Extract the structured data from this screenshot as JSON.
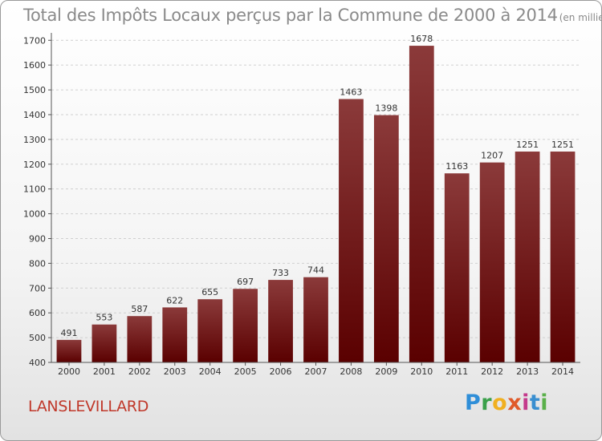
{
  "header": {
    "title": "Total des Impôts Locaux perçus par la Commune de 2000 à 2014",
    "unit": "(en milliers d'€)"
  },
  "commune": "LANSLEVILLARD",
  "logo": {
    "letters": [
      "P",
      "r",
      "o",
      "x",
      "i",
      "t",
      "i"
    ]
  },
  "colors": {
    "bar_top": "#8b3a3a",
    "bar_bottom": "#5a0000",
    "title": "#8a8a8a",
    "commune": "#c0392b"
  },
  "chart_data": {
    "type": "bar",
    "categories": [
      "2000",
      "2001",
      "2002",
      "2003",
      "2004",
      "2005",
      "2006",
      "2007",
      "2008",
      "2009",
      "2010",
      "2011",
      "2012",
      "2013",
      "2014"
    ],
    "values": [
      491,
      553,
      587,
      622,
      655,
      697,
      733,
      744,
      1463,
      1398,
      1678,
      1163,
      1207,
      1251,
      1251
    ],
    "yticks": [
      400,
      500,
      600,
      700,
      800,
      900,
      1000,
      1100,
      1200,
      1300,
      1400,
      1500,
      1600,
      1700
    ],
    "ylim": [
      400,
      1730
    ],
    "grid": "horizontal dashed",
    "xlabel": "",
    "ylabel": ""
  }
}
